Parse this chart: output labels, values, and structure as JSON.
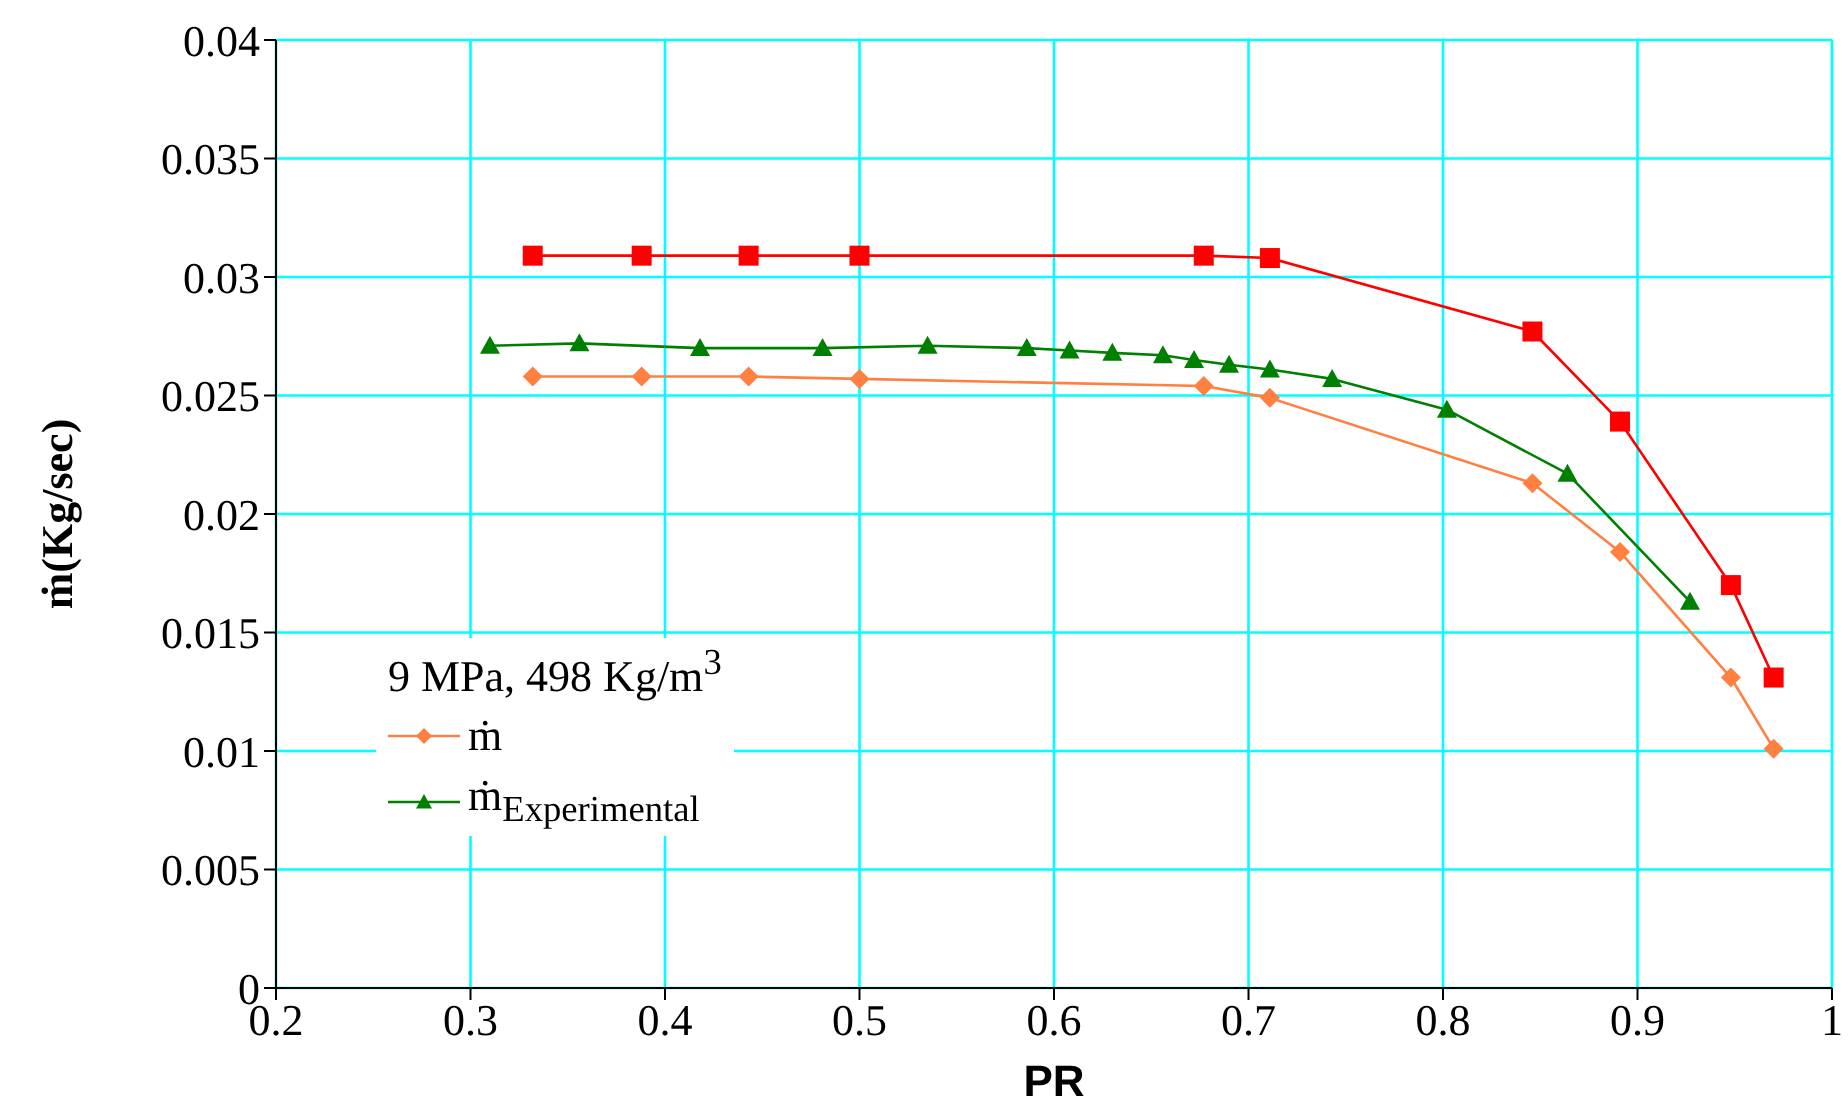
{
  "chart_data": {
    "type": "line",
    "xlabel": "PR",
    "ylabel": "ṁ(Kg/sec)",
    "legend_title": "9 MPa, 498 Kg/m$^{3}$",
    "xlim": [
      0.2,
      1
    ],
    "xticks": [
      0.2,
      0.3,
      0.4,
      0.5,
      0.6,
      0.7,
      0.8,
      0.9,
      1
    ],
    "ylim": [
      0,
      0.04
    ],
    "yticks": [
      0,
      0.005,
      0.01,
      0.015,
      0.02,
      0.025,
      0.03,
      0.035,
      0.04
    ],
    "grid": true,
    "legend": "bottom left",
    "series": [
      {
        "color": "#ff0000",
        "marker": "square",
        "x": [
          0.332,
          0.388,
          0.443,
          0.5,
          0.677,
          0.711,
          0.846,
          0.891,
          0.948,
          0.97
        ],
        "values": [
          0.0309,
          0.0309,
          0.0309,
          0.0309,
          0.0309,
          0.0308,
          0.0277,
          0.0239,
          0.017,
          0.0131
        ]
      },
      {
        "name": "ṁ",
        "color": "#ff8040",
        "marker": "diamond",
        "x": [
          0.332,
          0.388,
          0.443,
          0.5,
          0.677,
          0.711,
          0.846,
          0.891,
          0.948,
          0.97
        ],
        "values": [
          0.0258,
          0.0258,
          0.0258,
          0.0257,
          0.0254,
          0.0249,
          0.0213,
          0.0184,
          0.0131,
          0.0101
        ]
      },
      {
        "name": "ṁ$_{Experimental}$",
        "color": "#008000",
        "marker": "triangle",
        "x": [
          0.31,
          0.356,
          0.418,
          0.481,
          0.535,
          0.586,
          0.608,
          0.63,
          0.656,
          0.672,
          0.69,
          0.711,
          0.743,
          0.802,
          0.864,
          0.927
        ],
        "values": [
          0.0271,
          0.0272,
          0.027,
          0.027,
          0.0271,
          0.027,
          0.0269,
          0.0268,
          0.0267,
          0.0265,
          0.0263,
          0.0261,
          0.0257,
          0.0244,
          0.0217,
          0.0163
        ]
      }
    ]
  }
}
